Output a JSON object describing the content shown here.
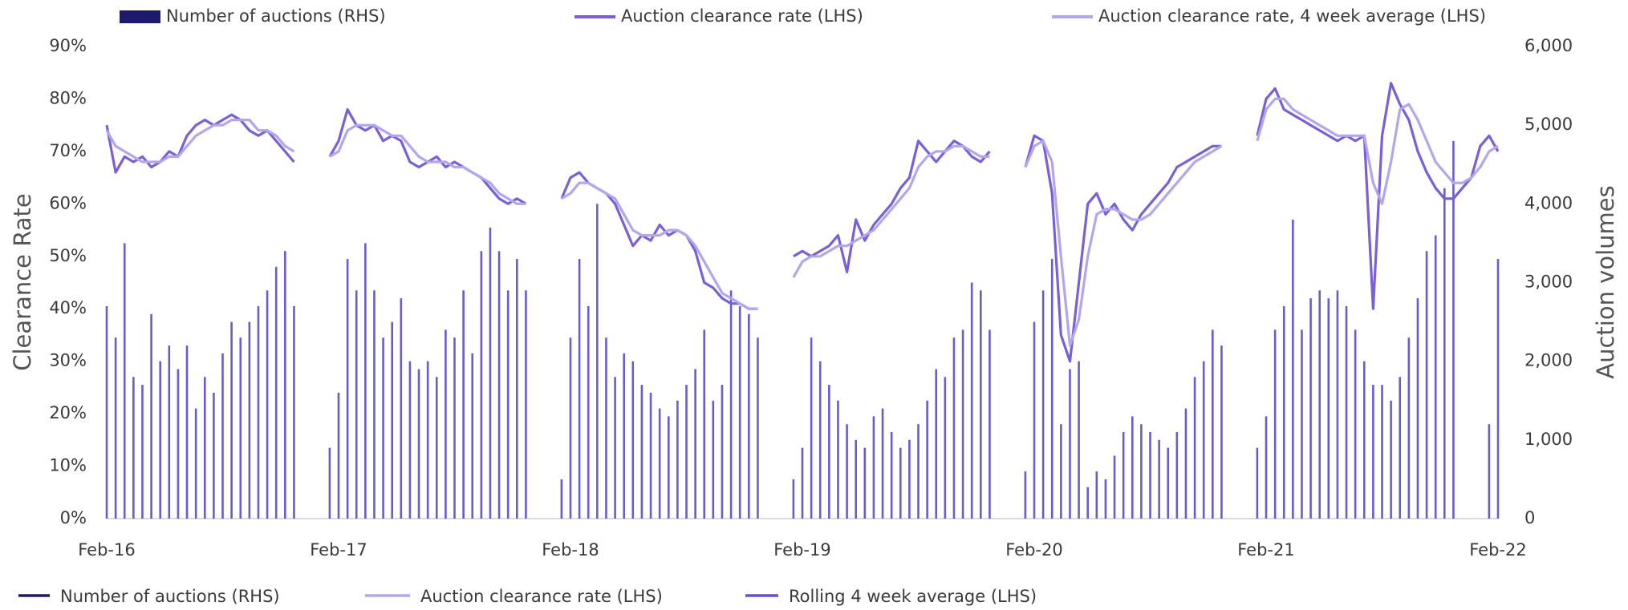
{
  "chart_data": {
    "type": "bar_line",
    "y_label": "Clearance Rate",
    "y2_label": "Auction volumes",
    "categories": [
      "Feb-16",
      null,
      null,
      null,
      null,
      null,
      null,
      null,
      null,
      null,
      null,
      null,
      null,
      null,
      null,
      null,
      null,
      null,
      null,
      null,
      null,
      null,
      null,
      null,
      null,
      null,
      "Feb-17",
      null,
      null,
      null,
      null,
      null,
      null,
      null,
      null,
      null,
      null,
      null,
      null,
      null,
      null,
      null,
      null,
      null,
      null,
      null,
      null,
      null,
      null,
      null,
      null,
      null,
      "Feb-18",
      null,
      null,
      null,
      null,
      null,
      null,
      null,
      null,
      null,
      null,
      null,
      null,
      null,
      null,
      null,
      null,
      null,
      null,
      null,
      null,
      null,
      null,
      null,
      null,
      null,
      "Feb-19",
      null,
      null,
      null,
      null,
      null,
      null,
      null,
      null,
      null,
      null,
      null,
      null,
      null,
      null,
      null,
      null,
      null,
      null,
      null,
      null,
      null,
      null,
      null,
      null,
      null,
      "Feb-20",
      null,
      null,
      null,
      null,
      null,
      null,
      null,
      null,
      null,
      null,
      null,
      null,
      null,
      null,
      null,
      null,
      null,
      null,
      null,
      null,
      null,
      null,
      null,
      null,
      null,
      "Feb-21",
      null,
      null,
      null,
      null,
      null,
      null,
      null,
      null,
      null,
      null,
      null,
      null,
      null,
      null,
      null,
      null,
      null,
      null,
      null,
      null,
      null,
      null,
      null,
      null,
      null,
      "Feb-22"
    ],
    "series": [
      {
        "name": "Number of auctions (RHS)",
        "kind": "bar",
        "axis": "y2",
        "color": "#6a5cc9",
        "values": [
          2700,
          2300,
          3500,
          1800,
          1700,
          2600,
          2000,
          2200,
          1900,
          2200,
          1400,
          1800,
          1600,
          2100,
          2500,
          2300,
          2500,
          2700,
          2900,
          3200,
          3400,
          2700,
          null,
          null,
          null,
          900,
          1600,
          3300,
          2900,
          3500,
          2900,
          2300,
          2500,
          2800,
          2000,
          1900,
          2000,
          1800,
          2400,
          2300,
          2900,
          2100,
          3400,
          3700,
          3400,
          2900,
          3300,
          2900,
          null,
          null,
          null,
          500,
          2300,
          3300,
          2700,
          4000,
          2300,
          1800,
          2100,
          2000,
          1700,
          1600,
          1400,
          1300,
          1500,
          1700,
          1900,
          2400,
          1500,
          1700,
          2900,
          2700,
          2600,
          2300,
          null,
          null,
          null,
          500,
          900,
          2300,
          2000,
          1700,
          1500,
          1200,
          1000,
          900,
          1300,
          1400,
          1100,
          900,
          1000,
          1200,
          1500,
          1900,
          1800,
          2300,
          2400,
          3000,
          2900,
          2400,
          null,
          null,
          null,
          600,
          2500,
          2900,
          3300,
          1200,
          1900,
          2000,
          400,
          600,
          500,
          800,
          1100,
          1300,
          1200,
          1100,
          1000,
          900,
          1100,
          1400,
          1800,
          2000,
          2400,
          2200,
          null,
          null,
          null,
          900,
          1300,
          2400,
          2700,
          3800,
          2400,
          2800,
          2900,
          2800,
          2900,
          2700,
          2400,
          2000,
          1700,
          1700,
          1500,
          1800,
          2300,
          2800,
          3400,
          3600,
          4200,
          4800,
          null,
          null,
          null,
          1200,
          3300
        ]
      },
      {
        "name": "Auction clearance rate (LHS)",
        "kind": "line",
        "color": "#7b5fd6",
        "values": [
          75,
          66,
          69,
          68,
          69,
          67,
          68,
          70,
          69,
          73,
          75,
          76,
          75,
          76,
          77,
          76,
          74,
          73,
          74,
          72,
          70,
          68,
          null,
          null,
          null,
          69,
          72,
          78,
          75,
          74,
          75,
          72,
          73,
          72,
          68,
          67,
          68,
          69,
          67,
          68,
          67,
          66,
          65,
          63,
          61,
          60,
          61,
          60,
          null,
          null,
          null,
          61,
          65,
          66,
          64,
          63,
          62,
          60,
          56,
          52,
          54,
          53,
          56,
          54,
          55,
          54,
          51,
          45,
          44,
          42,
          41,
          41,
          40,
          40,
          null,
          null,
          null,
          50,
          51,
          50,
          51,
          52,
          54,
          47,
          57,
          53,
          56,
          58,
          60,
          63,
          65,
          72,
          70,
          68,
          70,
          72,
          71,
          69,
          68,
          70,
          null,
          null,
          null,
          67,
          73,
          72,
          62,
          35,
          30,
          45,
          60,
          62,
          58,
          60,
          57,
          55,
          58,
          60,
          62,
          64,
          67,
          68,
          69,
          70,
          71,
          71,
          null,
          null,
          null,
          73,
          80,
          82,
          78,
          77,
          76,
          75,
          74,
          73,
          72,
          73,
          72,
          73,
          40,
          73,
          83,
          79,
          76,
          70,
          66,
          63,
          61,
          61,
          63,
          65,
          71,
          73,
          70
        ]
      },
      {
        "name": "Auction clearance rate, 4 week average (LHS)",
        "kind": "line",
        "color": "#b4a6ea",
        "values": [
          74,
          71,
          70,
          69,
          68,
          68,
          68,
          69,
          69,
          71,
          73,
          74,
          75,
          75,
          76,
          76,
          76,
          74,
          74,
          73,
          71,
          70,
          null,
          null,
          null,
          69,
          70,
          74,
          75,
          75,
          75,
          74,
          73,
          73,
          71,
          69,
          68,
          68,
          68,
          67,
          67,
          66,
          65,
          64,
          62,
          61,
          60,
          60,
          null,
          null,
          null,
          61,
          62,
          64,
          64,
          63,
          62,
          61,
          58,
          55,
          54,
          54,
          54,
          55,
          55,
          54,
          52,
          49,
          46,
          43,
          42,
          41,
          40,
          40,
          null,
          null,
          null,
          46,
          49,
          50,
          50,
          51,
          52,
          52,
          53,
          54,
          55,
          57,
          59,
          61,
          63,
          67,
          69,
          70,
          70,
          71,
          71,
          70,
          69,
          69,
          null,
          null,
          null,
          67,
          71,
          72,
          68,
          50,
          33,
          38,
          50,
          58,
          59,
          59,
          58,
          57,
          57,
          58,
          60,
          62,
          64,
          66,
          68,
          69,
          70,
          71,
          null,
          null,
          null,
          72,
          78,
          80,
          80,
          78,
          77,
          76,
          75,
          74,
          73,
          73,
          73,
          73,
          64,
          60,
          68,
          78,
          79,
          76,
          72,
          68,
          66,
          64,
          64,
          65,
          67,
          70,
          71
        ]
      }
    ],
    "legend_bottom": [
      {
        "label": "Number of auctions (RHS)",
        "color": "#1d1a6b"
      },
      {
        "label": "Auction clearance rate (LHS)",
        "color": "#b4a6ea"
      },
      {
        "label": "Rolling 4 week average (LHS)",
        "color": "#6a4fd0"
      }
    ],
    "legend_box_color": "#1d1a6b",
    "ylim": [
      0,
      90
    ],
    "yticks": [
      {
        "value": 0,
        "label": "0%"
      },
      {
        "value": 10,
        "label": "10%"
      },
      {
        "value": 20,
        "label": "20%"
      },
      {
        "value": 30,
        "label": "30%"
      },
      {
        "value": 40,
        "label": "40%"
      },
      {
        "value": 50,
        "label": "50%"
      },
      {
        "value": 60,
        "label": "60%"
      },
      {
        "value": 70,
        "label": "70%"
      },
      {
        "value": 80,
        "label": "80%"
      },
      {
        "value": 90,
        "label": "90%"
      }
    ],
    "y2lim": [
      0,
      6000
    ],
    "y2ticks": [
      0,
      {
        "value": 1000,
        "label": "1,000"
      },
      {
        "value": 2000,
        "label": "2,000"
      },
      {
        "value": 3000,
        "label": "3,000"
      },
      {
        "value": 4000,
        "label": "4,000"
      },
      {
        "value": 5000,
        "label": "5,000"
      },
      {
        "value": 6000,
        "label": "6,000"
      }
    ],
    "grid": false
  }
}
